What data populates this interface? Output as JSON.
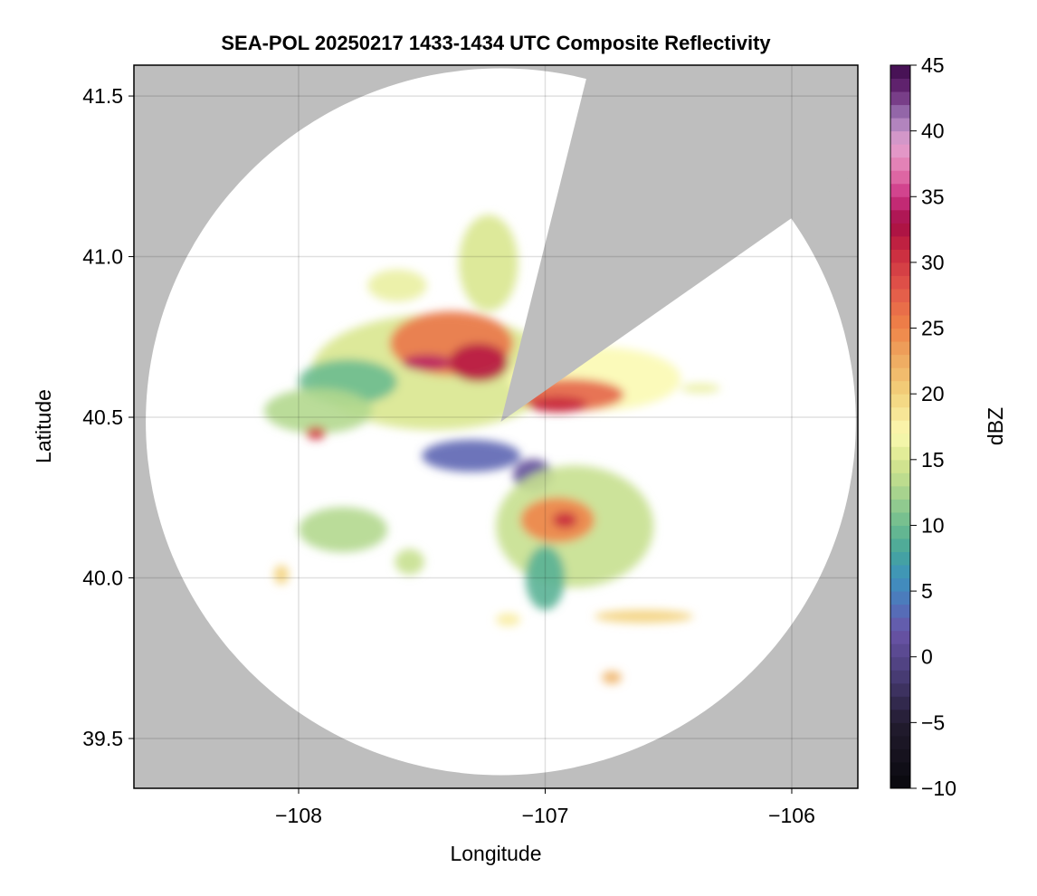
{
  "chart_data": {
    "type": "heatmap",
    "title": "SEA-POL 20250217 1433-1434 UTC Composite Reflectivity",
    "xlabel": "Longitude",
    "ylabel": "Latitude",
    "xlim": [
      -108.668,
      -105.732
    ],
    "ylim": [
      39.345,
      41.596
    ],
    "xticks": [
      -108,
      -107,
      -106
    ],
    "xtick_labels": [
      "−108",
      "−107",
      "−106"
    ],
    "yticks": [
      39.5,
      40.0,
      40.5,
      41.0,
      41.5
    ],
    "ytick_labels": [
      "39.5",
      "40.0",
      "40.5",
      "41.0",
      "41.5"
    ],
    "grid": true,
    "background_color": "#bebebe",
    "radar": {
      "lon": -107.18,
      "lat": 40.486,
      "range_lon_deg": 1.44,
      "range_lat_deg": 1.1,
      "blocked_sectors_deg": [
        [
          14,
          55
        ]
      ]
    },
    "colorbar": {
      "label": "dBZ",
      "range": [
        -10,
        45
      ],
      "ticks": [
        -10,
        -5,
        0,
        5,
        10,
        15,
        20,
        25,
        30,
        35,
        40,
        45
      ],
      "tick_labels": [
        "−10",
        "−5",
        "0",
        "5",
        "10",
        "15",
        "20",
        "25",
        "30",
        "35",
        "40",
        "45"
      ],
      "stops": [
        [
          -10,
          "#08080c"
        ],
        [
          -5,
          "#231c30"
        ],
        [
          -1,
          "#4c3f7c"
        ],
        [
          2,
          "#6a55a8"
        ],
        [
          4,
          "#4f74bc"
        ],
        [
          6,
          "#3e92bd"
        ],
        [
          8,
          "#46a69b"
        ],
        [
          10,
          "#6cbb8f"
        ],
        [
          13,
          "#b3d88e"
        ],
        [
          15,
          "#d9e78f"
        ],
        [
          17,
          "#fbf9b2"
        ],
        [
          20,
          "#f3d27c"
        ],
        [
          23,
          "#eea55e"
        ],
        [
          25,
          "#ef8448"
        ],
        [
          28,
          "#e2574a"
        ],
        [
          31,
          "#c8283f"
        ],
        [
          33,
          "#a50d45"
        ],
        [
          35,
          "#cc3383"
        ],
        [
          37,
          "#e377ae"
        ],
        [
          39,
          "#e3a1cf"
        ],
        [
          41,
          "#a17ab8"
        ],
        [
          43,
          "#6a2a78"
        ],
        [
          45,
          "#3d0a4a"
        ]
      ]
    },
    "echoes": [
      {
        "lon": -107.45,
        "lat": 40.64,
        "rlon": 0.5,
        "rlat": 0.18,
        "dbz": 15
      },
      {
        "lon": -107.8,
        "lat": 40.61,
        "rlon": 0.2,
        "rlat": 0.07,
        "dbz": 10
      },
      {
        "lon": -107.92,
        "lat": 40.52,
        "rlon": 0.22,
        "rlat": 0.07,
        "dbz": 13
      },
      {
        "lon": -107.23,
        "lat": 40.98,
        "rlon": 0.12,
        "rlat": 0.15,
        "dbz": 15
      },
      {
        "lon": -107.6,
        "lat": 40.91,
        "rlon": 0.12,
        "rlat": 0.05,
        "dbz": 16
      },
      {
        "lon": -107.38,
        "lat": 40.73,
        "rlon": 0.25,
        "rlat": 0.1,
        "dbz": 26
      },
      {
        "lon": -107.27,
        "lat": 40.67,
        "rlon": 0.12,
        "rlat": 0.06,
        "dbz": 32
      },
      {
        "lon": -107.48,
        "lat": 40.67,
        "rlon": 0.1,
        "rlat": 0.025,
        "dbz": 34
      },
      {
        "lon": -106.8,
        "lat": 40.62,
        "rlon": 0.35,
        "rlat": 0.1,
        "dbz": 17
      },
      {
        "lon": -106.9,
        "lat": 40.57,
        "rlon": 0.22,
        "rlat": 0.05,
        "dbz": 27
      },
      {
        "lon": -106.95,
        "lat": 40.54,
        "rlon": 0.12,
        "rlat": 0.025,
        "dbz": 31
      },
      {
        "lon": -107.3,
        "lat": 40.38,
        "rlon": 0.2,
        "rlat": 0.05,
        "dbz": 3
      },
      {
        "lon": -107.05,
        "lat": 40.32,
        "rlon": 0.08,
        "rlat": 0.05,
        "dbz": 1
      },
      {
        "lon": -106.88,
        "lat": 40.16,
        "rlon": 0.32,
        "rlat": 0.19,
        "dbz": 14
      },
      {
        "lon": -106.95,
        "lat": 40.18,
        "rlon": 0.15,
        "rlat": 0.07,
        "dbz": 25
      },
      {
        "lon": -106.92,
        "lat": 40.18,
        "rlon": 0.05,
        "rlat": 0.025,
        "dbz": 31
      },
      {
        "lon": -107.0,
        "lat": 40.0,
        "rlon": 0.08,
        "rlat": 0.1,
        "dbz": 9
      },
      {
        "lon": -107.82,
        "lat": 40.15,
        "rlon": 0.18,
        "rlat": 0.07,
        "dbz": 13
      },
      {
        "lon": -107.55,
        "lat": 40.05,
        "rlon": 0.06,
        "rlat": 0.04,
        "dbz": 14
      },
      {
        "lon": -106.6,
        "lat": 39.88,
        "rlon": 0.2,
        "rlat": 0.02,
        "dbz": 20
      },
      {
        "lon": -106.73,
        "lat": 39.69,
        "rlon": 0.04,
        "rlat": 0.02,
        "dbz": 22
      },
      {
        "lon": -108.07,
        "lat": 40.01,
        "rlon": 0.03,
        "rlat": 0.03,
        "dbz": 20
      },
      {
        "lon": -107.93,
        "lat": 40.45,
        "rlon": 0.04,
        "rlat": 0.02,
        "dbz": 30
      },
      {
        "lon": -107.15,
        "lat": 39.87,
        "rlon": 0.05,
        "rlat": 0.02,
        "dbz": 18
      },
      {
        "lon": -106.37,
        "lat": 40.59,
        "rlon": 0.08,
        "rlat": 0.015,
        "dbz": 16
      }
    ]
  }
}
